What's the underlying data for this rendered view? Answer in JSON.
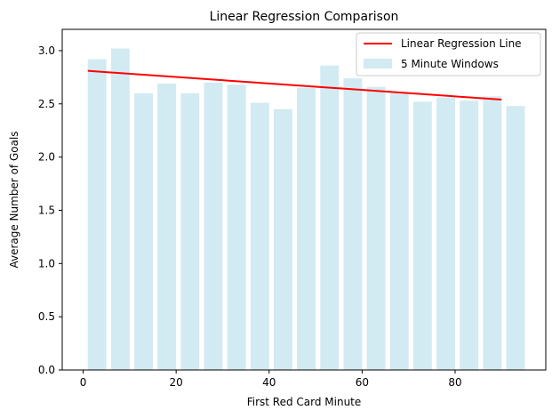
{
  "chart_data": {
    "type": "bar",
    "title": "Linear Regression Comparison",
    "xlabel": "First Red Card Minute",
    "ylabel": "Average Number of Goals",
    "xlim": [
      -4.5,
      99.5
    ],
    "ylim": [
      0,
      3.2
    ],
    "x_ticks": [
      0,
      20,
      40,
      60,
      80
    ],
    "x_tick_labels": [
      "0",
      "20",
      "40",
      "60",
      "80"
    ],
    "y_ticks": [
      0.0,
      0.5,
      1.0,
      1.5,
      2.0,
      2.5,
      3.0
    ],
    "y_tick_labels": [
      "0.0",
      "0.5",
      "1.0",
      "1.5",
      "2.0",
      "2.5",
      "3.0"
    ],
    "grid": false,
    "legend_position": "top-right",
    "bar_width": 4,
    "series": [
      {
        "name": "5 Minute Windows",
        "kind": "bar",
        "color": "#add8e6",
        "x": [
          3,
          8,
          13,
          18,
          23,
          28,
          33,
          38,
          43,
          48,
          53,
          58,
          63,
          68,
          73,
          78,
          83,
          88,
          93
        ],
        "values": [
          2.92,
          3.02,
          2.6,
          2.69,
          2.6,
          2.7,
          2.68,
          2.51,
          2.45,
          2.65,
          2.86,
          2.74,
          2.66,
          2.61,
          2.52,
          2.56,
          2.53,
          2.57,
          2.48
        ]
      },
      {
        "name": "Linear Regression Line",
        "kind": "line",
        "color": "#ff0000",
        "x": [
          1,
          90
        ],
        "values": [
          2.81,
          2.54
        ]
      }
    ]
  }
}
